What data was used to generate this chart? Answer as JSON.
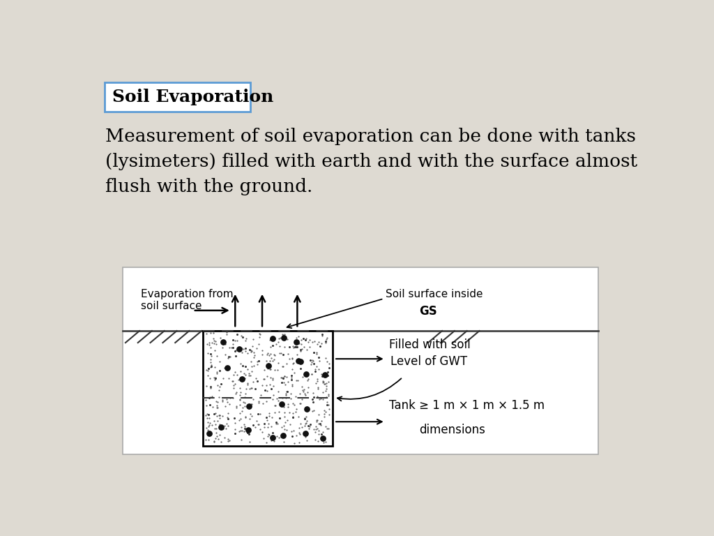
{
  "bg_color": "#dedad2",
  "diagram_bg": "#ffffff",
  "title": "Soil Evaporation",
  "title_box_color": "#5b9bd5",
  "paragraph": "Measurement of soil evaporation can be done with tanks\n(lysimeters) filled with earth and with the surface almost\nflush with the ground.",
  "label_evap": "Evaporation from\nsoil surface",
  "label_soil_surface": "Soil surface inside",
  "label_gs": "GS",
  "label_filled": "Filled with soil",
  "label_gwt": "Level of GWT",
  "label_tank_line1": "Tank ≥ 1 m × 1 m × 1.5 m",
  "label_tank_line2": "dimensions"
}
